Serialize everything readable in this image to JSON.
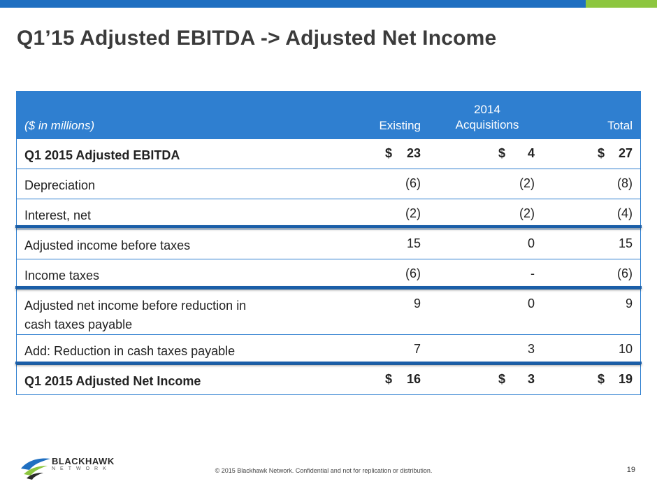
{
  "title": "Q1’15 Adjusted EBITDA -> Adjusted Net Income",
  "table": {
    "units_label": "($ in millions)",
    "columns": [
      "Existing",
      "2014",
      "Acquisitions",
      "Total"
    ],
    "rows": [
      {
        "label": "Q1 2015 Adjusted EBITDA",
        "existing": "23",
        "acquisitions": "4",
        "total": "27",
        "currency": "$"
      },
      {
        "label": "Depreciation",
        "existing": "(6)",
        "acquisitions": "(2)",
        "total": "(8)"
      },
      {
        "label": "Interest, net",
        "existing": "(2)",
        "acquisitions": "(2)",
        "total": "(4)"
      },
      {
        "label": "Adjusted income before taxes",
        "existing": "15",
        "acquisitions": "0",
        "total": "15"
      },
      {
        "label": "Income taxes",
        "existing": "(6)",
        "acquisitions": "-",
        "total": "(6)"
      },
      {
        "label": "Adjusted net income before reduction in",
        "label2": "cash taxes payable",
        "existing": "9",
        "acquisitions": "0",
        "total": "9"
      },
      {
        "label": "Add: Reduction in cash taxes payable",
        "existing": "7",
        "acquisitions": "3",
        "total": "10"
      },
      {
        "label": "Q1 2015 Adjusted Net Income",
        "existing": "16",
        "acquisitions": "3",
        "total": "19",
        "currency": "$"
      }
    ]
  },
  "logo": {
    "name": "BLACKHAWK",
    "sub": "NETWORK"
  },
  "footer": "© 2015 Blackhawk Network. Confidential and not for replication or distribution.",
  "page_number": "19",
  "colors": {
    "brand_blue": "#2f7fd0",
    "accent_green": "#8dc63f",
    "separator": "#1a5ea8"
  }
}
